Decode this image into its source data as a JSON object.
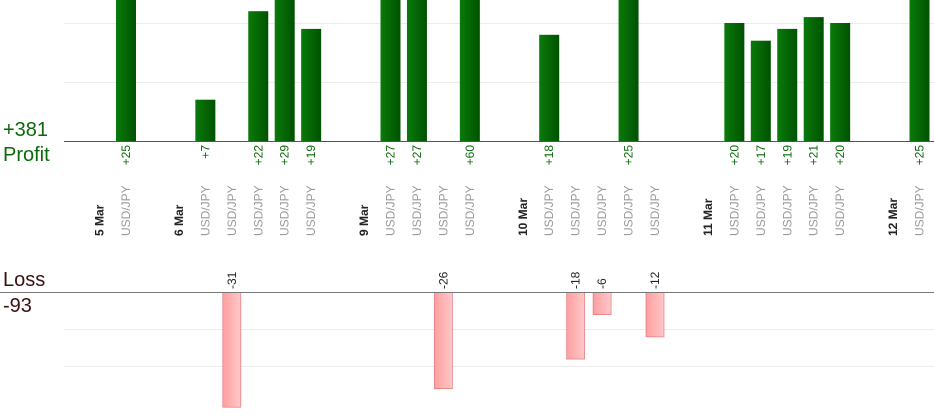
{
  "chart_data": {
    "type": "bar",
    "profit": {
      "label": "Profit",
      "total": "+381",
      "color": "#0a6a0a"
    },
    "loss": {
      "label": "Loss",
      "total": "-93",
      "color": "#ff9ea0"
    },
    "dates": [
      "5 Mar",
      "6 Mar",
      "9 Mar",
      "10 Mar",
      "11 Mar",
      "12 Mar"
    ],
    "trades": [
      {
        "pair": "USD/JPY",
        "value": 25
      },
      {
        "pair": "USD/JPY",
        "value": 7
      },
      {
        "pair": "USD/JPY",
        "value": -31
      },
      {
        "pair": "USD/JPY",
        "value": 22
      },
      {
        "pair": "USD/JPY",
        "value": 29
      },
      {
        "pair": "USD/JPY",
        "value": 19
      },
      {
        "pair": "USD/JPY",
        "value": 27
      },
      {
        "pair": "USD/JPY",
        "value": 27
      },
      {
        "pair": "USD/JPY",
        "value": -26
      },
      {
        "pair": "USD/JPY",
        "value": 60
      },
      {
        "pair": "USD/JPY",
        "value": 18
      },
      {
        "pair": "USD/JPY",
        "value": -18
      },
      {
        "pair": "USD/JPY",
        "value": -6
      },
      {
        "pair": "USD/JPY",
        "value": 25
      },
      {
        "pair": "USD/JPY",
        "value": -12
      },
      {
        "pair": "USD/JPY",
        "value": 20
      },
      {
        "pair": "USD/JPY",
        "value": 17
      },
      {
        "pair": "USD/JPY",
        "value": 19
      },
      {
        "pair": "USD/JPY",
        "value": 21
      },
      {
        "pair": "USD/JPY",
        "value": 20
      },
      {
        "pair": "USD/JPY",
        "value": 25
      }
    ],
    "profit_gridlines": [
      10,
      20
    ],
    "loss_gridlines": [
      -10,
      -20
    ],
    "grid": true
  }
}
